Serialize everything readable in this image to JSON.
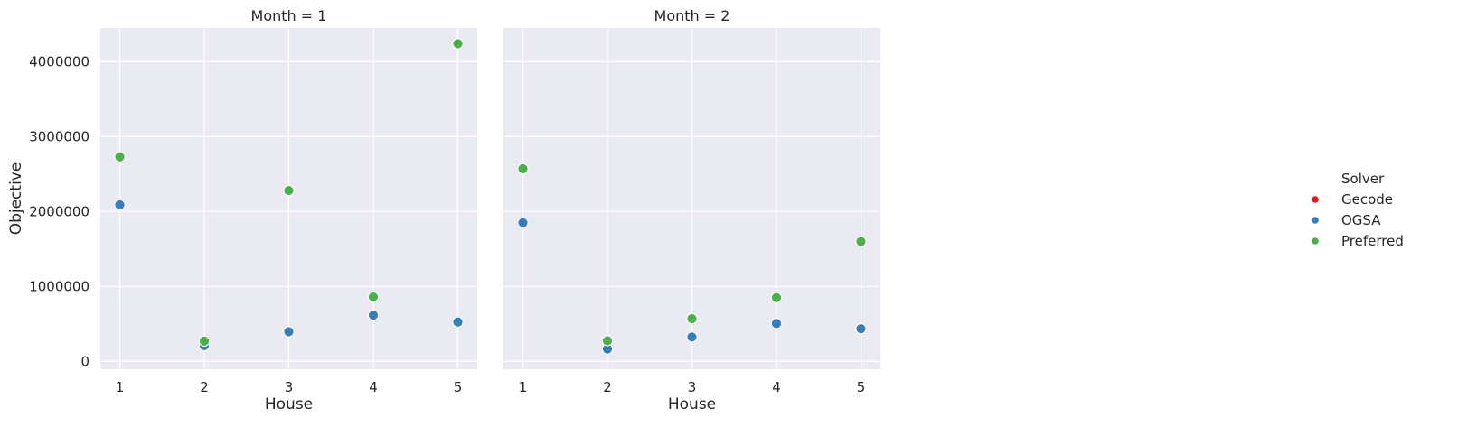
{
  "chart_data": {
    "type": "scatter",
    "ylabel": "Objective",
    "xlabel": "House",
    "x_ticks": [
      1,
      2,
      3,
      4,
      5
    ],
    "y_ticks": [
      0,
      1000000,
      2000000,
      3000000,
      4000000
    ],
    "xlim": [
      0.77,
      5.23
    ],
    "ylim": [
      -105000,
      4450000
    ],
    "grid": true,
    "legend": {
      "title": "Solver",
      "placement": "right",
      "entries": [
        {
          "label": "Gecode",
          "color": "#e41a1c"
        },
        {
          "label": "OGSA",
          "color": "#377eb8"
        },
        {
          "label": "Preferred",
          "color": "#4daf4a"
        }
      ]
    },
    "panels": [
      {
        "title": "Month = 1",
        "series": [
          {
            "name": "Gecode",
            "x": [],
            "y": []
          },
          {
            "name": "OGSA",
            "x": [
              1,
              2,
              3,
              4,
              5
            ],
            "y": [
              2090000,
              210000,
              395000,
              615000,
              525000
            ]
          },
          {
            "name": "Preferred",
            "x": [
              1,
              2,
              3,
              4,
              5
            ],
            "y": [
              2730000,
              270000,
              2280000,
              860000,
              4240000
            ]
          }
        ]
      },
      {
        "title": "Month = 2",
        "series": [
          {
            "name": "Gecode",
            "x": [],
            "y": []
          },
          {
            "name": "OGSA",
            "x": [
              1,
              2,
              3,
              4,
              5
            ],
            "y": [
              1850000,
              165000,
              325000,
              505000,
              435000
            ]
          },
          {
            "name": "Preferred",
            "x": [
              1,
              2,
              3,
              4,
              5
            ],
            "y": [
              2570000,
              275000,
              570000,
              850000,
              1600000
            ]
          }
        ]
      }
    ]
  }
}
